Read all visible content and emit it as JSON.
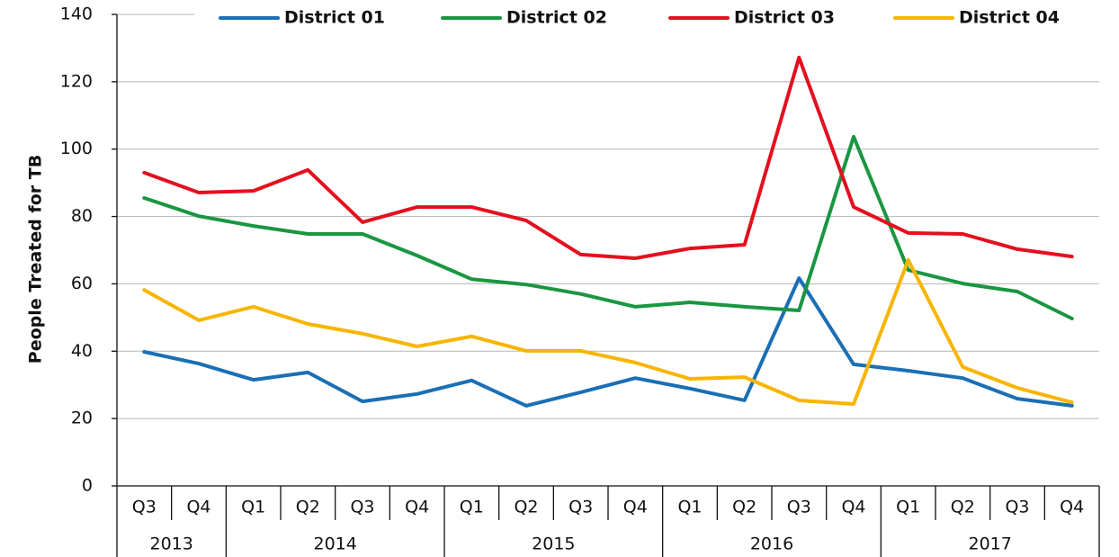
{
  "chart_data": {
    "type": "line",
    "y_label": "People Treated for TB",
    "categories": [
      "Q3",
      "Q4",
      "Q1",
      "Q2",
      "Q3",
      "Q4",
      "Q1",
      "Q2",
      "Q3",
      "Q4",
      "Q1",
      "Q2",
      "Q3",
      "Q4",
      "Q1",
      "Q2",
      "Q3",
      "Q4"
    ],
    "category_groups": [
      {
        "label": "2013",
        "count": 2
      },
      {
        "label": "2014",
        "count": 4
      },
      {
        "label": "2015",
        "count": 4
      },
      {
        "label": "2016",
        "count": 4
      },
      {
        "label": "2017",
        "count": 4
      }
    ],
    "series": [
      {
        "name": "District 01",
        "color": "#1a6fb5",
        "values": [
          39.8,
          36.3,
          31.5,
          33.7,
          25.1,
          27.3,
          31.3,
          23.8,
          27.8,
          32,
          28.9,
          25.4,
          61.7,
          36.1,
          34.2,
          32,
          25.9,
          23.8
        ]
      },
      {
        "name": "District 02",
        "color": "#1a9641",
        "values": [
          85.5,
          80.1,
          77.2,
          74.8,
          74.8,
          68.4,
          61.4,
          59.8,
          57,
          53.2,
          54.5,
          53.2,
          52.1,
          103.7,
          64.1,
          60.1,
          57.7,
          49.7
        ]
      },
      {
        "name": "District 03",
        "color": "#e3101e",
        "values": [
          93,
          87.1,
          87.6,
          93.8,
          78.3,
          82.8,
          82.8,
          78.8,
          68.7,
          67.6,
          70.5,
          71.6,
          127.2,
          82.8,
          75.1,
          74.8,
          70.3,
          68.1
        ]
      },
      {
        "name": "District 04",
        "color": "#f7b500",
        "values": [
          58.2,
          49.2,
          53.2,
          48.1,
          45.2,
          41.4,
          44.4,
          40.1,
          40.1,
          36.6,
          31.8,
          32.3,
          25.4,
          24.3,
          67.1,
          35.3,
          29.1,
          24.8
        ]
      }
    ],
    "ylim": [
      0,
      140
    ],
    "yticks": [
      0,
      20,
      40,
      60,
      80,
      100,
      120,
      140
    ],
    "grid": true,
    "legend": "top"
  }
}
